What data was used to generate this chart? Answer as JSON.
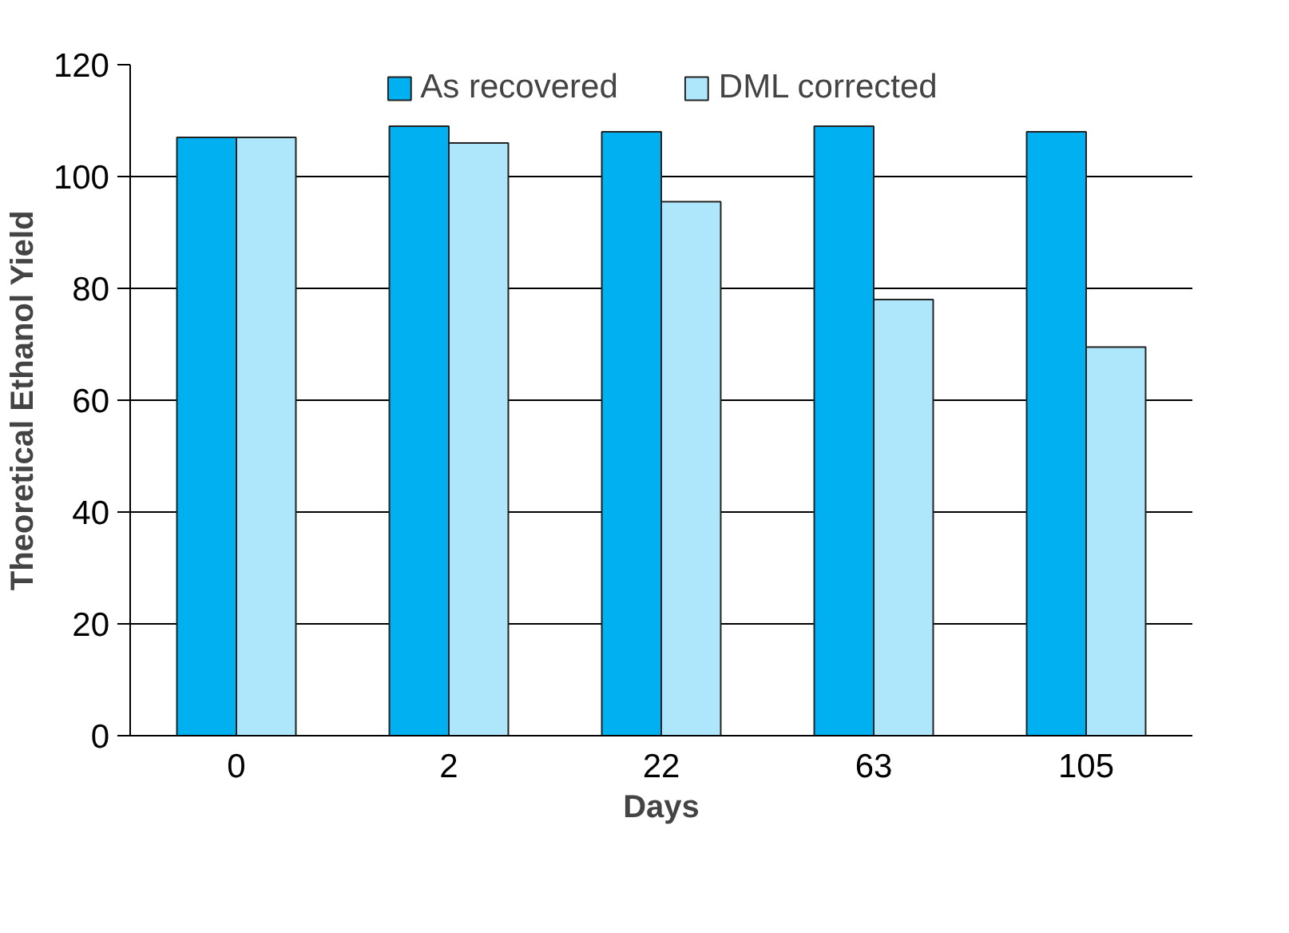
{
  "chart_data": {
    "type": "bar",
    "xlabel": "Days",
    "ylabel": "Theoretical Ethanol Yield",
    "categories": [
      "0",
      "2",
      "22",
      "63",
      "105"
    ],
    "series": [
      {
        "name": "As recovered",
        "color": "#00b0f0",
        "values": [
          107,
          109,
          108,
          109,
          108
        ]
      },
      {
        "name": "DML corrected",
        "color": "#aee7fc",
        "values": [
          107,
          106,
          95.5,
          78,
          69.5
        ]
      }
    ],
    "ylim": [
      0,
      120
    ],
    "yticks": [
      0,
      20,
      40,
      60,
      80,
      100,
      120
    ],
    "grid": "y",
    "legend": "top"
  }
}
